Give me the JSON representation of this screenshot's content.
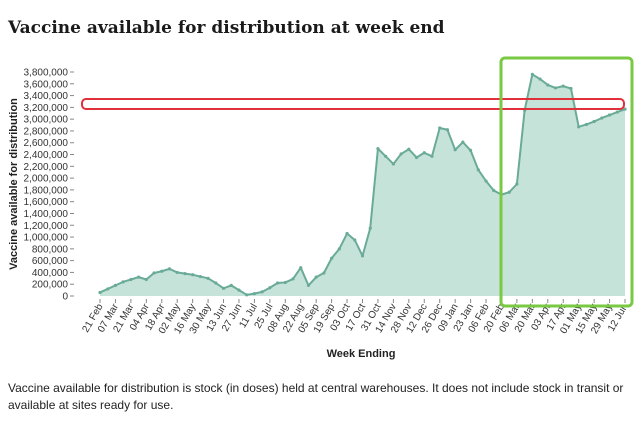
{
  "title": "Vaccine available for distribution at week end",
  "caption": "Vaccine available for distribution is stock (in doses) held at central warehouses. It does not include stock in transit or available at sites ready for use.",
  "colors": {
    "fill": "#c6e3da",
    "line": "#6aab98",
    "red_annotation": "#e0303a",
    "green_annotation": "#7ac943"
  },
  "chart_data": {
    "type": "area",
    "title": "Vaccine available for distribution at week end",
    "xlabel": "Week Ending",
    "ylabel": "Vaccine available for distribution",
    "ylim": [
      0,
      3800000
    ],
    "yticks": [
      0,
      200000,
      400000,
      600000,
      800000,
      1000000,
      1200000,
      1400000,
      1600000,
      1800000,
      2000000,
      2200000,
      2400000,
      2600000,
      2800000,
      3000000,
      3200000,
      3400000,
      3600000,
      3800000
    ],
    "ytick_labels": [
      "0",
      "200,000",
      "400,000",
      "600,000",
      "800,000",
      "1,000,000",
      "1,200,000",
      "1,400,000",
      "1,600,000",
      "1,800,000",
      "2,000,000",
      "2,200,000",
      "2,400,000",
      "2,600,000",
      "2,800,000",
      "3,000,000",
      "3,200,000",
      "3,400,000",
      "3,600,000",
      "3,800,000"
    ],
    "xtick_labels": [
      "21 Feb",
      "07 Mar",
      "21 Mar",
      "04 Apr",
      "18 Apr",
      "02 May",
      "16 May",
      "30 May",
      "13 Jun",
      "27 Jun",
      "11 Jul",
      "25 Jul",
      "08 Aug",
      "22 Aug",
      "05 Sep",
      "19 Sep",
      "03 Oct",
      "17 Oct",
      "31 Oct",
      "14 Nov",
      "28 Nov",
      "12 Dec",
      "26 Dec",
      "09 Jan",
      "23 Jan",
      "06 Feb",
      "20 Feb",
      "06 Mar",
      "20 Mar",
      "03 Apr",
      "17 Apr",
      "01 May",
      "15 May",
      "29 May",
      "12 Jun"
    ],
    "series": [
      {
        "name": "Vaccine available for distribution",
        "values": [
          60000,
          120000,
          180000,
          240000,
          280000,
          320000,
          280000,
          390000,
          420000,
          460000,
          400000,
          380000,
          360000,
          330000,
          300000,
          220000,
          130000,
          180000,
          100000,
          20000,
          40000,
          70000,
          140000,
          220000,
          230000,
          290000,
          480000,
          180000,
          320000,
          390000,
          640000,
          800000,
          1060000,
          950000,
          680000,
          1150000,
          2500000,
          2370000,
          2240000,
          2410000,
          2490000,
          2350000,
          2430000,
          2370000,
          2850000,
          2820000,
          2480000,
          2610000,
          2470000,
          2140000,
          1950000,
          1790000,
          1720000,
          1760000,
          1900000,
          3150000,
          3760000,
          3680000,
          3580000,
          3530000,
          3560000,
          3520000,
          2870000,
          2910000,
          2960000,
          3020000,
          3070000,
          3120000,
          3170000
        ]
      }
    ],
    "annotations": [
      {
        "shape": "rounded rectangle outline",
        "color": "red",
        "description": "horizontal band around 3,200,000"
      },
      {
        "shape": "rounded rectangle outline",
        "color": "green",
        "description": "highlights the period 20 Feb through 12 Jun"
      }
    ]
  }
}
